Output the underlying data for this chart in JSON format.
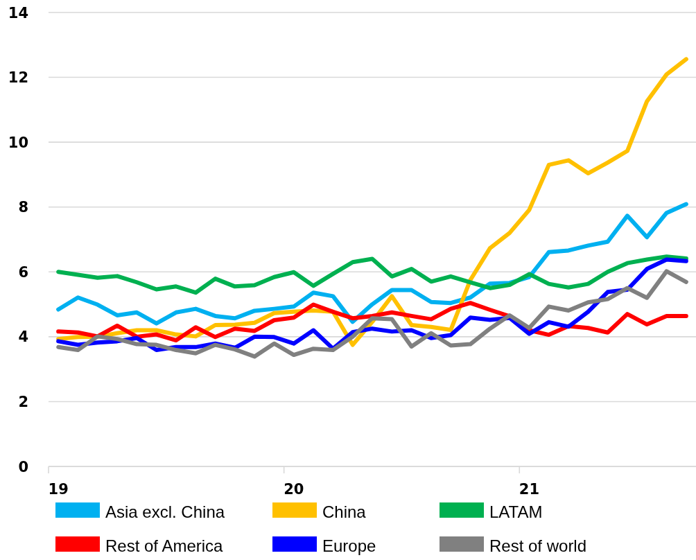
{
  "chart_data": {
    "type": "line",
    "categories": [
      "19",
      null,
      null,
      null,
      null,
      null,
      null,
      null,
      null,
      null,
      null,
      null,
      "20",
      null,
      null,
      null,
      null,
      null,
      null,
      null,
      null,
      null,
      null,
      null,
      "21",
      null,
      null,
      null,
      null,
      null,
      null,
      null,
      null
    ],
    "series": [
      {
        "name": "Asia excl. China",
        "color": "#00b0f0",
        "values": [
          4.84,
          5.21,
          4.99,
          4.66,
          4.75,
          4.41,
          4.75,
          4.86,
          4.64,
          4.57,
          4.8,
          4.86,
          4.93,
          5.36,
          5.25,
          4.46,
          5.0,
          5.44,
          5.44,
          5.07,
          5.04,
          5.21,
          5.64,
          5.66,
          5.84,
          6.61,
          6.66,
          6.81,
          6.93,
          7.73,
          7.07,
          7.82,
          8.09
        ]
      },
      {
        "name": "China",
        "color": "#ffc000",
        "values": [
          3.93,
          3.99,
          4.0,
          4.11,
          4.2,
          4.2,
          4.07,
          4.01,
          4.36,
          4.37,
          4.43,
          4.73,
          4.77,
          4.81,
          4.77,
          3.75,
          4.46,
          5.25,
          4.36,
          4.3,
          4.21,
          5.75,
          6.73,
          7.2,
          7.91,
          9.3,
          9.44,
          9.04,
          9.37,
          9.73,
          11.26,
          12.09,
          12.56
        ]
      },
      {
        "name": "LATAM",
        "color": "#00b050",
        "values": [
          6.0,
          5.91,
          5.82,
          5.87,
          5.68,
          5.46,
          5.55,
          5.36,
          5.79,
          5.55,
          5.59,
          5.84,
          5.99,
          5.57,
          5.94,
          6.3,
          6.4,
          5.86,
          6.09,
          5.7,
          5.86,
          5.68,
          5.5,
          5.6,
          5.93,
          5.63,
          5.52,
          5.63,
          6.0,
          6.27,
          6.38,
          6.47,
          6.41
        ]
      },
      {
        "name": "Rest of America",
        "color": "#ff0000",
        "values": [
          4.16,
          4.13,
          4.01,
          4.34,
          4.0,
          4.07,
          3.89,
          4.29,
          3.99,
          4.25,
          4.18,
          4.51,
          4.59,
          4.99,
          4.77,
          4.57,
          4.64,
          4.75,
          4.64,
          4.54,
          4.86,
          5.04,
          4.83,
          4.63,
          4.2,
          4.06,
          4.33,
          4.27,
          4.13,
          4.7,
          4.38,
          4.64,
          4.64
        ]
      },
      {
        "name": "Europe",
        "color": "#0000ff",
        "values": [
          3.86,
          3.75,
          3.82,
          3.86,
          3.96,
          3.59,
          3.68,
          3.68,
          3.79,
          3.66,
          4.0,
          3.99,
          3.79,
          4.2,
          3.63,
          4.14,
          4.25,
          4.16,
          4.2,
          3.96,
          4.05,
          4.59,
          4.52,
          4.58,
          4.09,
          4.45,
          4.31,
          4.77,
          5.38,
          5.45,
          6.09,
          6.38,
          6.33
        ]
      },
      {
        "name": "Rest of world",
        "color": "#808080",
        "values": [
          3.68,
          3.59,
          4.01,
          3.93,
          3.77,
          3.75,
          3.59,
          3.49,
          3.75,
          3.61,
          3.39,
          3.79,
          3.44,
          3.63,
          3.59,
          4.0,
          4.57,
          4.54,
          3.7,
          4.11,
          3.73,
          3.77,
          4.25,
          4.66,
          4.27,
          4.93,
          4.81,
          5.06,
          5.16,
          5.5,
          5.2,
          6.02,
          5.69
        ]
      }
    ],
    "ylim": [
      0,
      14
    ],
    "yticks": [
      0,
      2,
      4,
      6,
      8,
      10,
      12,
      14
    ],
    "grid": "y",
    "legend": "bottom"
  }
}
